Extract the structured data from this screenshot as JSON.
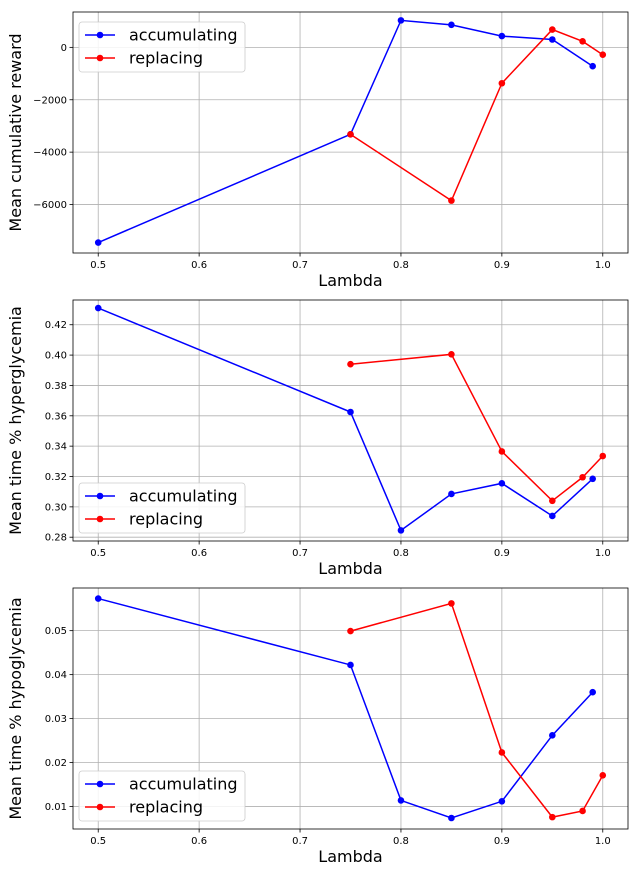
{
  "colors": {
    "accumulating": "#0000ff",
    "replacing": "#ff0000",
    "grid": "#b0b0b0"
  },
  "chart_data": [
    {
      "type": "line",
      "xlabel": "Lambda",
      "ylabel": "Mean cumulative reward",
      "xlim": [
        0.475,
        1.025
      ],
      "ylim": [
        -7850,
        1350
      ],
      "xticks": [
        0.5,
        0.6,
        0.7,
        0.8,
        0.9,
        1.0
      ],
      "xtick_labels": [
        "0.5",
        "0.6",
        "0.7",
        "0.8",
        "0.9",
        "1.0"
      ],
      "yticks": [
        -6000,
        -4000,
        -2000,
        0
      ],
      "ytick_labels": [
        "−6000",
        "−4000",
        "−2000",
        "0"
      ],
      "grid": true,
      "legend_position": "upper-left",
      "series": [
        {
          "name": "accumulating",
          "color": "#0000ff",
          "x": [
            0.5,
            0.75,
            0.8,
            0.85,
            0.9,
            0.95,
            0.99
          ],
          "y": [
            -7450,
            -3320,
            1030,
            860,
            430,
            300,
            -720
          ]
        },
        {
          "name": "replacing",
          "color": "#ff0000",
          "x": [
            0.75,
            0.85,
            0.9,
            0.95,
            0.98,
            1.0
          ],
          "y": [
            -3320,
            -5850,
            -1370,
            680,
            230,
            -280
          ]
        }
      ]
    },
    {
      "type": "line",
      "xlabel": "Lambda",
      "ylabel": "Mean time % hyperglycemia",
      "xlim": [
        0.475,
        1.025
      ],
      "ylim": [
        0.2775,
        0.4363
      ],
      "xticks": [
        0.5,
        0.6,
        0.7,
        0.8,
        0.9,
        1.0
      ],
      "xtick_labels": [
        "0.5",
        "0.6",
        "0.7",
        "0.8",
        "0.9",
        "1.0"
      ],
      "yticks": [
        0.28,
        0.3,
        0.32,
        0.34,
        0.36,
        0.38,
        0.4,
        0.42
      ],
      "ytick_labels": [
        "0.28",
        "0.30",
        "0.32",
        "0.34",
        "0.36",
        "0.38",
        "0.40",
        "0.42"
      ],
      "grid": true,
      "legend_position": "lower-left",
      "series": [
        {
          "name": "accumulating",
          "color": "#0000ff",
          "x": [
            0.5,
            0.75,
            0.8,
            0.85,
            0.9,
            0.95,
            0.99
          ],
          "y": [
            0.431,
            0.3625,
            0.2845,
            0.3085,
            0.3155,
            0.294,
            0.3185
          ]
        },
        {
          "name": "replacing",
          "color": "#ff0000",
          "x": [
            0.75,
            0.85,
            0.9,
            0.95,
            0.98,
            1.0
          ],
          "y": [
            0.394,
            0.4005,
            0.3365,
            0.304,
            0.3195,
            0.3335
          ]
        }
      ]
    },
    {
      "type": "line",
      "xlabel": "Lambda",
      "ylabel": "Mean time % hypoglycemia",
      "xlim": [
        0.475,
        1.025
      ],
      "ylim": [
        0.0049,
        0.0597
      ],
      "xticks": [
        0.5,
        0.6,
        0.7,
        0.8,
        0.9,
        1.0
      ],
      "xtick_labels": [
        "0.5",
        "0.6",
        "0.7",
        "0.8",
        "0.9",
        "1.0"
      ],
      "yticks": [
        0.01,
        0.02,
        0.03,
        0.04,
        0.05
      ],
      "ytick_labels": [
        "0.01",
        "0.02",
        "0.03",
        "0.04",
        "0.05"
      ],
      "grid": true,
      "legend_position": "lower-left",
      "series": [
        {
          "name": "accumulating",
          "color": "#0000ff",
          "x": [
            0.5,
            0.75,
            0.8,
            0.85,
            0.9,
            0.95,
            0.99
          ],
          "y": [
            0.0573,
            0.0422,
            0.0114,
            0.0074,
            0.0112,
            0.0262,
            0.036
          ]
        },
        {
          "name": "replacing",
          "color": "#ff0000",
          "x": [
            0.75,
            0.85,
            0.9,
            0.95,
            0.98,
            1.0
          ],
          "y": [
            0.0499,
            0.0562,
            0.0223,
            0.0076,
            0.009,
            0.0171
          ]
        }
      ]
    }
  ]
}
